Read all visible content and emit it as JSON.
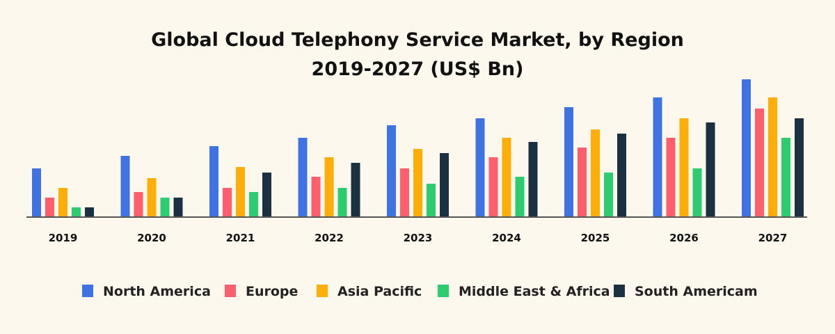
{
  "chart_data": {
    "type": "bar",
    "title": "Global Cloud Telephony Service Market, by Region",
    "subtitle": "2019-2027 (US$ Bn)",
    "categories": [
      "2019",
      "2020",
      "2021",
      "2022",
      "2023",
      "2024",
      "2025",
      "2026",
      "2027"
    ],
    "ylim": [
      0,
      10
    ],
    "grid": false,
    "legend_position": "bottom",
    "series": [
      {
        "name": "North America",
        "color": "#3f73e3",
        "values": [
          3.5,
          4.4,
          5.1,
          5.7,
          6.6,
          7.1,
          7.9,
          8.6,
          9.9
        ]
      },
      {
        "name": "Europe",
        "color": "#ff5f6d",
        "values": [
          1.4,
          1.8,
          2.1,
          2.9,
          3.5,
          4.3,
          5.0,
          5.7,
          7.8
        ]
      },
      {
        "name": "Asia Pacific",
        "color": "#ffad08",
        "values": [
          2.1,
          2.8,
          3.6,
          4.3,
          4.9,
          5.7,
          6.3,
          7.1,
          8.6
        ]
      },
      {
        "name": "Middle East & Africa",
        "color": "#2ecc71",
        "values": [
          0.7,
          1.4,
          1.8,
          2.1,
          2.4,
          2.9,
          3.2,
          3.5,
          5.7
        ]
      },
      {
        "name": "South Americam",
        "color": "#1b3142",
        "values": [
          0.7,
          1.4,
          3.2,
          3.9,
          4.6,
          5.4,
          6.0,
          6.8,
          7.1
        ]
      }
    ]
  }
}
